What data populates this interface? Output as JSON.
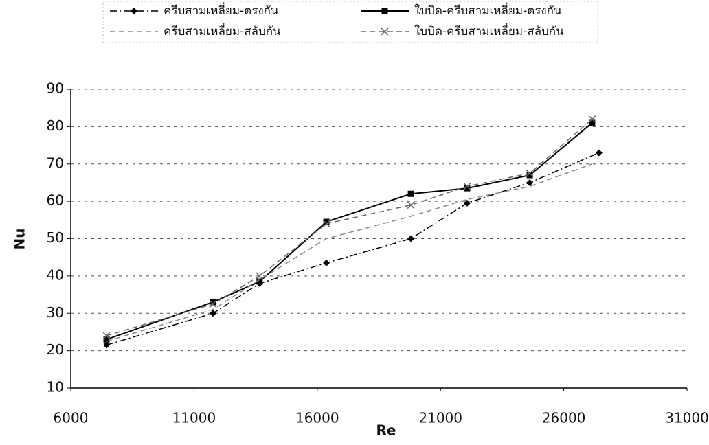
{
  "chart_data": {
    "type": "line",
    "xlabel": "Re",
    "ylabel": "Nu",
    "xlim": [
      6000,
      31000
    ],
    "xticks": [
      6000,
      11000,
      16000,
      21000,
      26000,
      31000
    ],
    "ylim": [
      10,
      90
    ],
    "yticks": [
      10,
      20,
      30,
      40,
      50,
      60,
      70,
      80,
      90
    ],
    "grid": true,
    "legend": "top",
    "series": [
      {
        "name": "ครีบสามเหลี่ยม-ตรงกัน",
        "color": "#000000",
        "line_style": "dashdot",
        "marker": "diamond",
        "x": [
          7450,
          11770,
          13660,
          16370,
          19800,
          22080,
          24620,
          27430
        ],
        "values": [
          21.5,
          30,
          38,
          43.5,
          50,
          59.5,
          65,
          73
        ]
      },
      {
        "name": "ใบบิด-ครีบสามเหลี่ยม-ตรงกัน",
        "color": "#000000",
        "line_style": "solid",
        "marker": "square",
        "x": [
          7450,
          11770,
          13660,
          16370,
          19800,
          22080,
          24620,
          27150
        ],
        "values": [
          23,
          33,
          38.5,
          54.5,
          62,
          63.5,
          67,
          81
        ]
      },
      {
        "name": "ครีบสามเหลี่ยม-สลับกัน",
        "color": "#888888",
        "line_style": "dashed",
        "marker": "none",
        "x": [
          7450,
          11770,
          13660,
          16370,
          19800,
          22080,
          24620,
          27150
        ],
        "values": [
          22.5,
          31,
          39,
          50,
          56,
          60.5,
          64,
          70
        ]
      },
      {
        "name": "ใบบิด-ครีบสามเหลี่ยม-สลับกัน",
        "color": "#666666",
        "line_style": "dashed",
        "marker": "x",
        "x": [
          7450,
          11770,
          13660,
          16370,
          19800,
          22080,
          24620,
          27150
        ],
        "values": [
          24,
          32.5,
          40,
          54,
          59,
          64,
          67.5,
          82
        ]
      }
    ]
  }
}
